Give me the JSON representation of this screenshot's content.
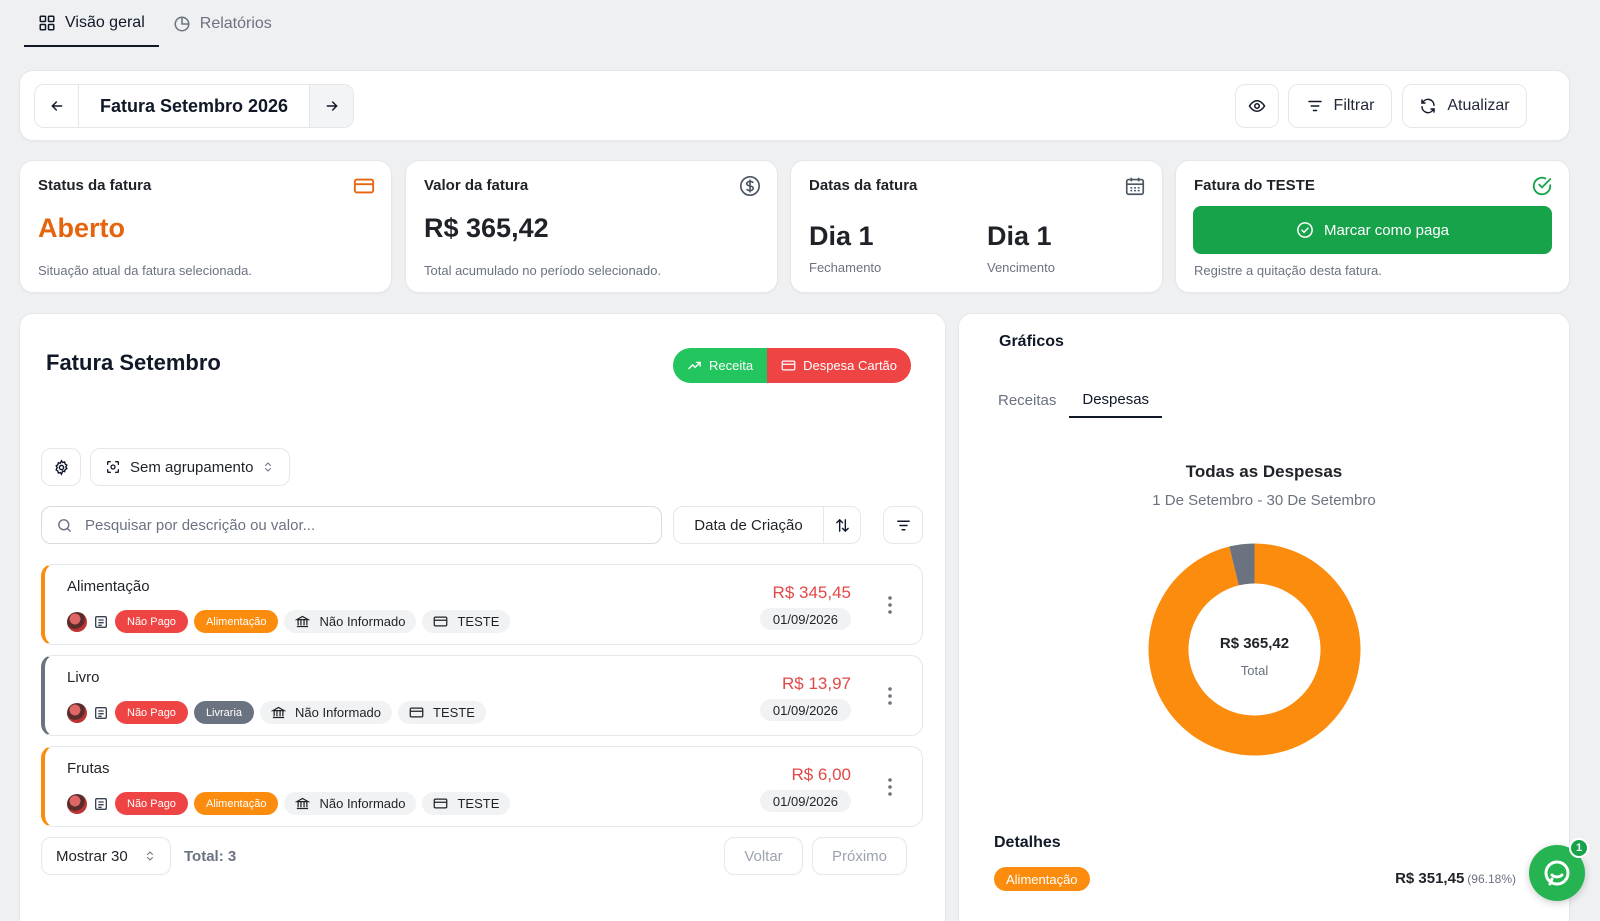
{
  "top_tabs": [
    {
      "label": "Visão geral",
      "icon": "grid-icon",
      "active": true
    },
    {
      "label": "Relatórios",
      "icon": "pie-chart-icon",
      "active": false
    }
  ],
  "period": {
    "title": "Fatura Setembro 2026",
    "filter_label": "Filtrar",
    "refresh_label": "Atualizar"
  },
  "stats": {
    "status": {
      "title": "Status da fatura",
      "value": "Aberto",
      "description": "Situação atual da fatura selecionada."
    },
    "amount": {
      "title": "Valor da fatura",
      "value": "R$ 365,42",
      "description": "Total acumulado no período selecionado."
    },
    "dates": {
      "title": "Datas da fatura",
      "closing_value": "Dia 1",
      "closing_label": "Fechamento",
      "due_value": "Dia 1",
      "due_label": "Vencimento"
    },
    "card": {
      "title": "Fatura do TESTE",
      "button_label": "Marcar como paga",
      "description": "Registre a quitação desta fatura."
    }
  },
  "list_panel": {
    "title": "Fatura Setembro",
    "income_button": "Receita",
    "expense_button": "Despesa Cartão",
    "grouping_label": "Sem agrupamento",
    "search_placeholder": "Pesquisar por descrição ou valor...",
    "sort_label": "Data de Criação",
    "transactions": [
      {
        "title": "Alimentação",
        "status": "Não Pago",
        "category": "Alimentação",
        "category_color": "#fb8c0d",
        "account": "Não Informado",
        "card": "TESTE",
        "amount": "R$ 345,45",
        "date": "01/09/2026",
        "accent": "#fb8c0d"
      },
      {
        "title": "Livro",
        "status": "Não Pago",
        "category": "Livraria",
        "category_color": "#6b7280",
        "account": "Não Informado",
        "card": "TESTE",
        "amount": "R$ 13,97",
        "date": "01/09/2026",
        "accent": "#6b7280"
      },
      {
        "title": "Frutas",
        "status": "Não Pago",
        "category": "Alimentação",
        "category_color": "#fb8c0d",
        "account": "Não Informado",
        "card": "TESTE",
        "amount": "R$ 6,00",
        "date": "01/09/2026",
        "accent": "#fb8c0d"
      }
    ],
    "page_size_label": "Mostrar 30",
    "total_label": "Total: 3",
    "prev_label": "Voltar",
    "next_label": "Próximo"
  },
  "charts_panel": {
    "title": "Gráficos",
    "tabs": [
      {
        "label": "Receitas",
        "active": false
      },
      {
        "label": "Despesas",
        "active": true
      }
    ],
    "chart_title": "Todas as Despesas",
    "chart_subtitle": "1 De Setembro - 30 De Setembro",
    "center_value": "R$ 365,42",
    "center_label": "Total",
    "details_title": "Detalhes",
    "details": [
      {
        "category": "Alimentação",
        "amount": "R$ 351,45",
        "percent": "(96.18%)"
      }
    ]
  },
  "chart_data": {
    "type": "pie",
    "categories": [
      "Alimentação",
      "Livraria"
    ],
    "values": [
      351.45,
      13.97
    ],
    "colors": [
      "#fb8c0d",
      "#6b7280"
    ]
  },
  "chat": {
    "badge_count": "1"
  },
  "colors": {
    "status_open": "#e5650f",
    "pay_green": "#16a34a",
    "income_green": "#22c55e",
    "expense_red": "#ef4444",
    "amount_red": "#e24848"
  }
}
